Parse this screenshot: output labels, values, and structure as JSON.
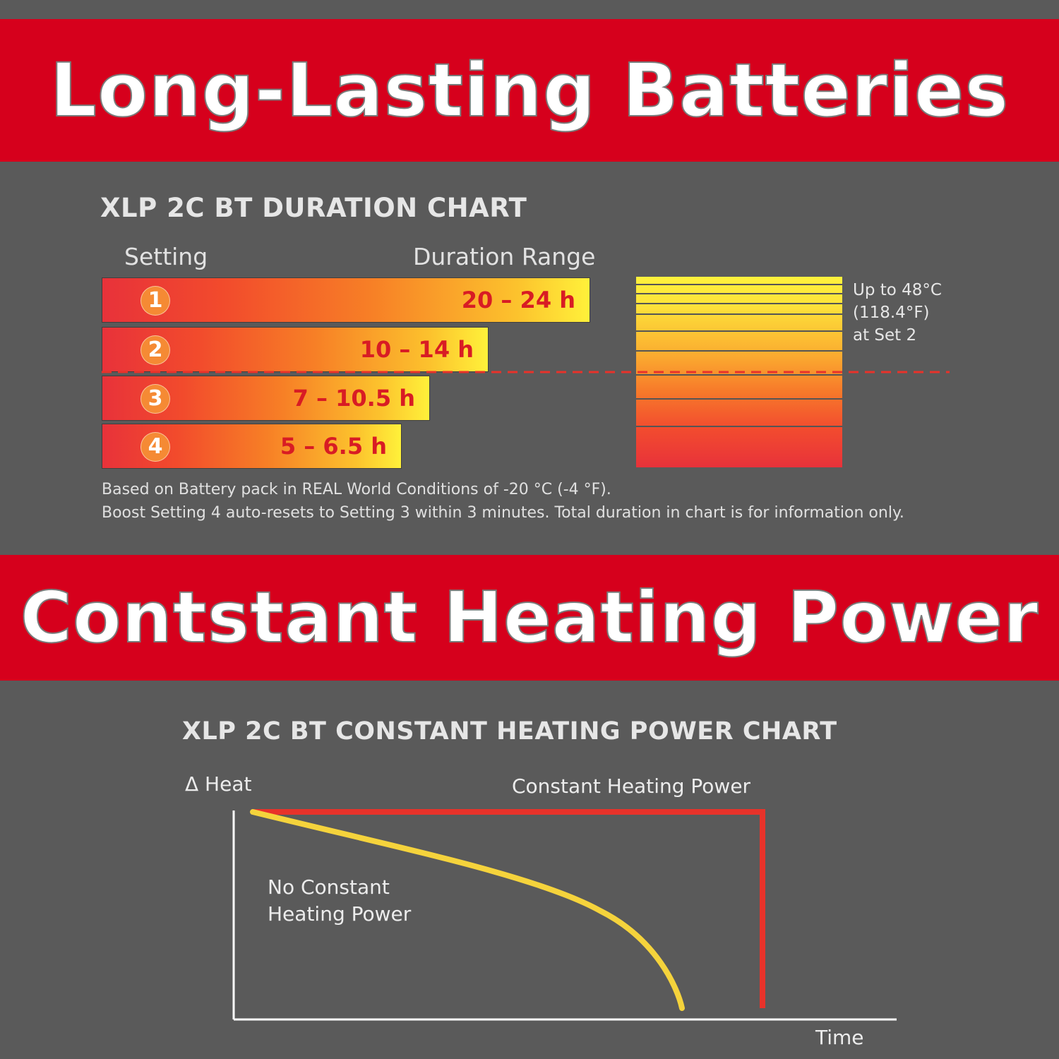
{
  "banners": {
    "top": "Long-Lasting Batteries",
    "middle": "Contstant Heating Power"
  },
  "duration_chart": {
    "title": "XLP 2C BT DURATION CHART",
    "col_setting": "Setting",
    "col_range": "Duration Range",
    "rows": [
      {
        "setting": "1",
        "range": "20 – 24 h"
      },
      {
        "setting": "2",
        "range": "10 – 14 h"
      },
      {
        "setting": "3",
        "range": "7 – 10.5 h"
      },
      {
        "setting": "4",
        "range": "5 – 6.5 h"
      }
    ],
    "note_line1": "Based on Battery pack in REAL World Conditions of -20 °C (-4 °F).",
    "note_line2": "Boost Setting 4 auto-resets to Setting 3 within 3 minutes. Total duration in chart is for information only.",
    "temp_line1": "Up to 48°C",
    "temp_line2": "(118.4°F)",
    "temp_line3": "at Set 2"
  },
  "power_chart": {
    "title": "XLP 2C BT CONSTANT HEATING POWER CHART",
    "y_label": "Δ Heat",
    "x_label": "Time",
    "constant_label": "Constant Heating Power",
    "no_constant_line1": "No Constant",
    "no_constant_line2": "Heating Power"
  },
  "chart_data": [
    {
      "type": "bar",
      "orientation": "horizontal",
      "title": "XLP 2C BT DURATION CHART",
      "categories": [
        "1",
        "2",
        "3",
        "4"
      ],
      "series": [
        {
          "name": "Duration Range",
          "values": [
            [
              20,
              24
            ],
            [
              10,
              14
            ],
            [
              7,
              10.5
            ],
            [
              5,
              6.5
            ]
          ]
        }
      ],
      "unit": "h"
    },
    {
      "type": "line",
      "title": "XLP 2C BT CONSTANT HEATING POWER CHART",
      "xlabel": "Time",
      "ylabel": "Δ Heat",
      "series": [
        {
          "name": "Constant Heating Power",
          "color": "#e8322a"
        },
        {
          "name": "No Constant Heating Power",
          "color": "#f5d33c"
        }
      ]
    }
  ],
  "colors": {
    "banner_red": "#d6001c",
    "background": "#5a5a5a",
    "constant_line": "#e8322a",
    "decay_line": "#f5d33c"
  }
}
